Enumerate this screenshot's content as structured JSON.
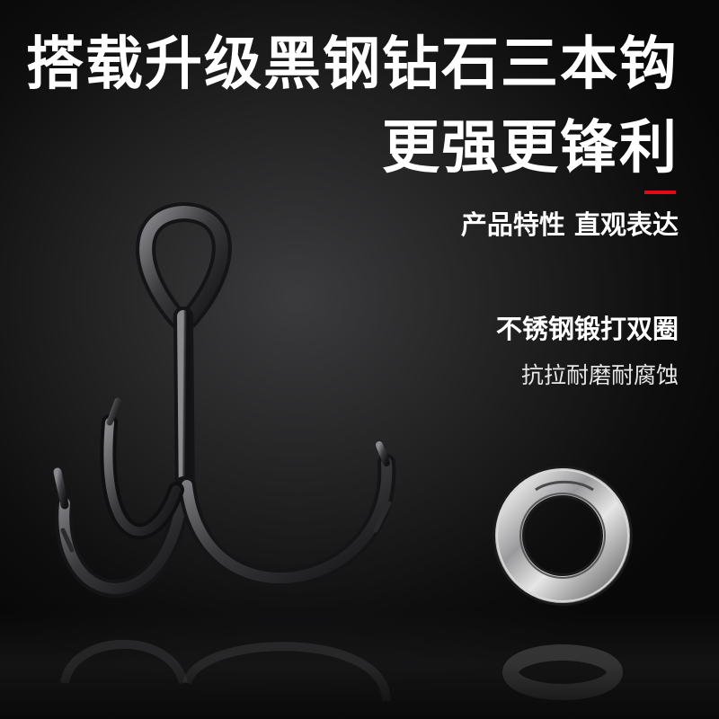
{
  "headline": {
    "line1": "搭载升级黑钢钻石三本钩",
    "line2": "更强更锋利"
  },
  "accent_color": "#e10a15",
  "background_color": "#1e1e1f",
  "features": {
    "main": "产品特性 直观表达",
    "ring_title": "不锈钢锻打双圈",
    "ring_subtitle": "抗拉耐磨耐腐蚀"
  },
  "products": {
    "hook": "treble-hook-icon",
    "ring": "split-ring-icon"
  }
}
